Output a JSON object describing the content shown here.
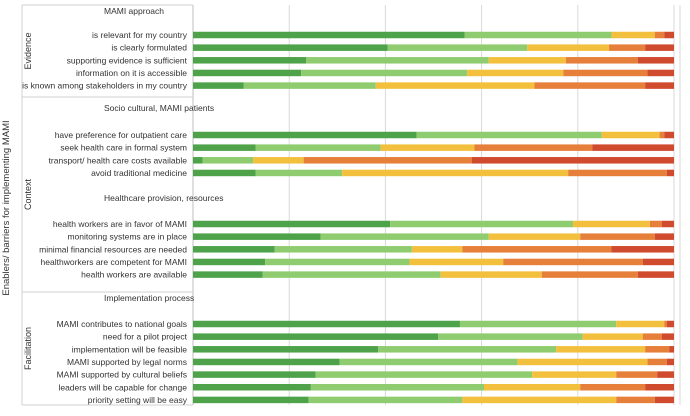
{
  "chart_data": {
    "type": "bar",
    "stacked": true,
    "orientation": "horizontal",
    "xlim": [
      0,
      100
    ],
    "grid": true,
    "legend": "none",
    "axis_title": "Enablers/ barriers for implementing MAMI",
    "colors": [
      "#4ea24a",
      "#8fcc70",
      "#f3c03e",
      "#e67f3a",
      "#d04a2e",
      "#c0392b"
    ],
    "groups": [
      {
        "name": "Evidence",
        "sections": [
          {
            "heading": "MAMI approach",
            "rows": [
              {
                "label": "is relevant for my country",
                "values": [
                  56.5,
                  30.5,
                  9,
                  2,
                  2
                ]
              },
              {
                "label": "is clearly formulated",
                "values": [
                  40.5,
                  29,
                  17,
                  7.5,
                  6
                ]
              },
              {
                "label": "supporting evidence is sufficient",
                "values": [
                  23.5,
                  38,
                  16,
                  15,
                  7.5
                ]
              },
              {
                "label": "information on it is accessible",
                "values": [
                  22.5,
                  34.5,
                  20,
                  17.5,
                  5.5
                ]
              },
              {
                "label": "is known among stakeholders in my country",
                "values": [
                  10.5,
                  27.5,
                  33,
                  23,
                  6
                ]
              }
            ]
          }
        ]
      },
      {
        "name": "Context",
        "sections": [
          {
            "heading": "Socio cultural, MAMI patients",
            "rows": [
              {
                "label": "have preference for outpatient care",
                "values": [
                  46.5,
                  38.5,
                  12,
                  1,
                  2
                ]
              },
              {
                "label": "seek health care in formal system",
                "values": [
                  13,
                  26,
                  19.5,
                  24.5,
                  17
                ]
              },
              {
                "label": "transport/ health care costs available",
                "values": [
                  2,
                  10.5,
                  10.5,
                  35,
                  42
                ]
              },
              {
                "label": "avoid traditional medicine",
                "values": [
                  13,
                  18,
                  47,
                  20.5,
                  1.5
                ]
              }
            ]
          },
          {
            "heading": "Healthcare provision, resources",
            "rows": [
              {
                "label": "health workers are in favor of MAMI",
                "values": [
                  41,
                  38,
                  16,
                  2.5,
                  2.5
                ]
              },
              {
                "label": "monitoring systems are in place",
                "values": [
                  26.5,
                  35,
                  19,
                  15.5,
                  4
                ]
              },
              {
                "label": "minimal financial resources are needed",
                "values": [
                  17,
                  28.5,
                  10.5,
                  31,
                  13
                ]
              },
              {
                "label": "healthworkers are competent for MAMI",
                "values": [
                  15,
                  30,
                  19.5,
                  29,
                  6.5
                ]
              },
              {
                "label": "health workers are available",
                "values": [
                  14.5,
                  37,
                  21,
                  20,
                  7.5
                ]
              }
            ]
          }
        ]
      },
      {
        "name": "Facilitation",
        "sections": [
          {
            "heading": "Implementation process",
            "rows": [
              {
                "label": "MAMI contributes to national goals",
                "values": [
                  55.5,
                  32.5,
                  10,
                  0.5,
                  1.5
                ]
              },
              {
                "label": "need for a pilot project",
                "values": [
                  51,
                  30,
                  12.5,
                  4,
                  2.5
                ]
              },
              {
                "label": "implementation will be feasible",
                "values": [
                  38.5,
                  37,
                  18.5,
                  5,
                  1
                ]
              },
              {
                "label": "MAMI supported by legal norms",
                "values": [
                  30.5,
                  37,
                  27,
                  4,
                  1.5
                ]
              },
              {
                "label": "MAMI supported by cultural beliefs",
                "values": [
                  25.5,
                  45,
                  17.5,
                  8.5,
                  3.5
                ]
              },
              {
                "label": "leaders will be capable for change",
                "values": [
                  24.5,
                  36,
                  20,
                  13.5,
                  6
                ]
              },
              {
                "label": "priority setting will be easy",
                "values": [
                  24,
                  32,
                  32,
                  8,
                  4
                ]
              }
            ]
          }
        ]
      }
    ]
  }
}
